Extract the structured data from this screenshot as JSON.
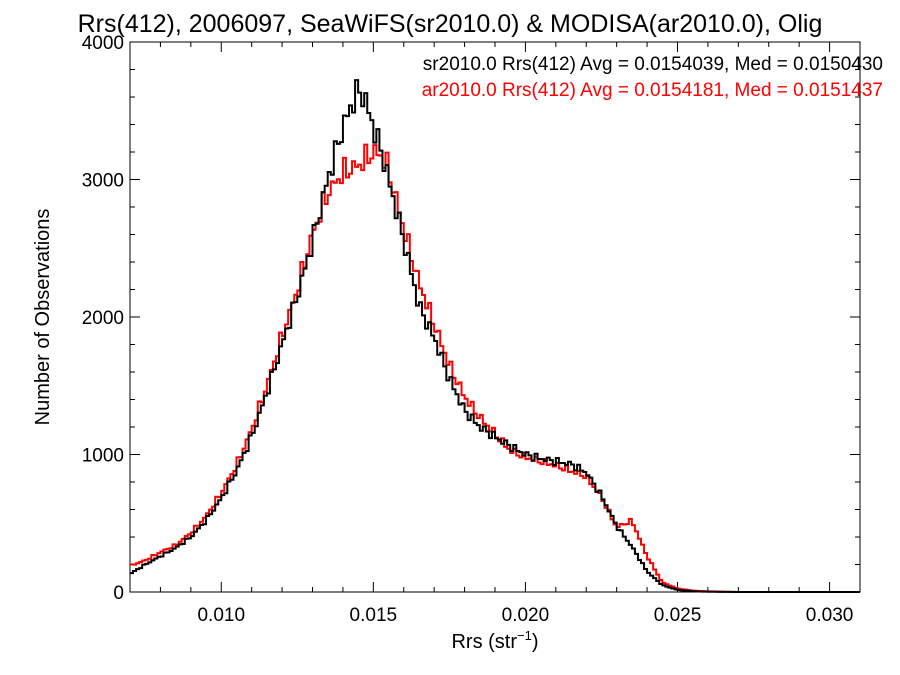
{
  "chart_data": {
    "type": "histogram-step",
    "title": "Rrs(412), 2006097, SeaWiFS(sr2010.0) & MODISA(ar2010.0), Olig",
    "xlabel_main": "Rrs (str",
    "xlabel_sup": "−1",
    "xlabel_end": ")",
    "ylabel": "Number of Observations",
    "xlim": [
      0.007,
      0.031
    ],
    "ylim": [
      0,
      4000
    ],
    "xticks": [
      0.01,
      0.015,
      0.02,
      0.025,
      0.03
    ],
    "xtick_labels": [
      "0.010",
      "0.015",
      "0.020",
      "0.025",
      "0.030"
    ],
    "yticks": [
      0,
      1000,
      2000,
      3000,
      4000
    ],
    "ytick_labels": [
      "0",
      "1000",
      "2000",
      "3000",
      "4000"
    ],
    "legend_placement": "top-right",
    "series": [
      {
        "name": "sr2010.0 Rrs(412) Avg = 0.0154039, Med = 0.0150430",
        "color": "#000000",
        "points": [
          [
            0.007,
            130
          ],
          [
            0.0075,
            200
          ],
          [
            0.008,
            260
          ],
          [
            0.0085,
            320
          ],
          [
            0.009,
            400
          ],
          [
            0.0095,
            520
          ],
          [
            0.01,
            680
          ],
          [
            0.0105,
            880
          ],
          [
            0.011,
            1130
          ],
          [
            0.0115,
            1450
          ],
          [
            0.012,
            1800
          ],
          [
            0.0125,
            2150
          ],
          [
            0.013,
            2550
          ],
          [
            0.0135,
            3000
          ],
          [
            0.014,
            3380
          ],
          [
            0.0143,
            3550
          ],
          [
            0.0145,
            3650
          ],
          [
            0.0147,
            3600
          ],
          [
            0.015,
            3380
          ],
          [
            0.0153,
            3180
          ],
          [
            0.0155,
            3000
          ],
          [
            0.016,
            2560
          ],
          [
            0.0165,
            2080
          ],
          [
            0.017,
            1850
          ],
          [
            0.0175,
            1550
          ],
          [
            0.018,
            1320
          ],
          [
            0.0185,
            1200
          ],
          [
            0.019,
            1130
          ],
          [
            0.0195,
            1060
          ],
          [
            0.02,
            1000
          ],
          [
            0.0205,
            970
          ],
          [
            0.021,
            950
          ],
          [
            0.0215,
            930
          ],
          [
            0.022,
            870
          ],
          [
            0.0225,
            700
          ],
          [
            0.023,
            480
          ],
          [
            0.0235,
            330
          ],
          [
            0.024,
            150
          ],
          [
            0.0245,
            50
          ],
          [
            0.025,
            15
          ],
          [
            0.0255,
            5
          ],
          [
            0.026,
            2
          ],
          [
            0.027,
            0
          ],
          [
            0.031,
            0
          ]
        ]
      },
      {
        "name": "ar2010.0 Rrs(412) Avg = 0.0154181, Med = 0.0151437",
        "color": "#ff0000",
        "points": [
          [
            0.007,
            190
          ],
          [
            0.0075,
            230
          ],
          [
            0.008,
            290
          ],
          [
            0.0085,
            340
          ],
          [
            0.009,
            430
          ],
          [
            0.0095,
            550
          ],
          [
            0.01,
            720
          ],
          [
            0.0105,
            920
          ],
          [
            0.011,
            1180
          ],
          [
            0.0115,
            1500
          ],
          [
            0.012,
            1860
          ],
          [
            0.0125,
            2200
          ],
          [
            0.013,
            2600
          ],
          [
            0.0135,
            2900
          ],
          [
            0.014,
            3050
          ],
          [
            0.0145,
            3100
          ],
          [
            0.015,
            3200
          ],
          [
            0.0153,
            3170
          ],
          [
            0.0155,
            3070
          ],
          [
            0.016,
            2640
          ],
          [
            0.0165,
            2250
          ],
          [
            0.017,
            1950
          ],
          [
            0.0175,
            1650
          ],
          [
            0.018,
            1420
          ],
          [
            0.0185,
            1270
          ],
          [
            0.019,
            1150
          ],
          [
            0.0195,
            1030
          ],
          [
            0.02,
            980
          ],
          [
            0.0205,
            950
          ],
          [
            0.021,
            920
          ],
          [
            0.0215,
            880
          ],
          [
            0.022,
            840
          ],
          [
            0.0225,
            690
          ],
          [
            0.023,
            470
          ],
          [
            0.0235,
            520
          ],
          [
            0.024,
            260
          ],
          [
            0.0245,
            70
          ],
          [
            0.025,
            25
          ],
          [
            0.0255,
            10
          ],
          [
            0.026,
            5
          ],
          [
            0.027,
            0
          ],
          [
            0.031,
            0
          ]
        ]
      }
    ]
  }
}
